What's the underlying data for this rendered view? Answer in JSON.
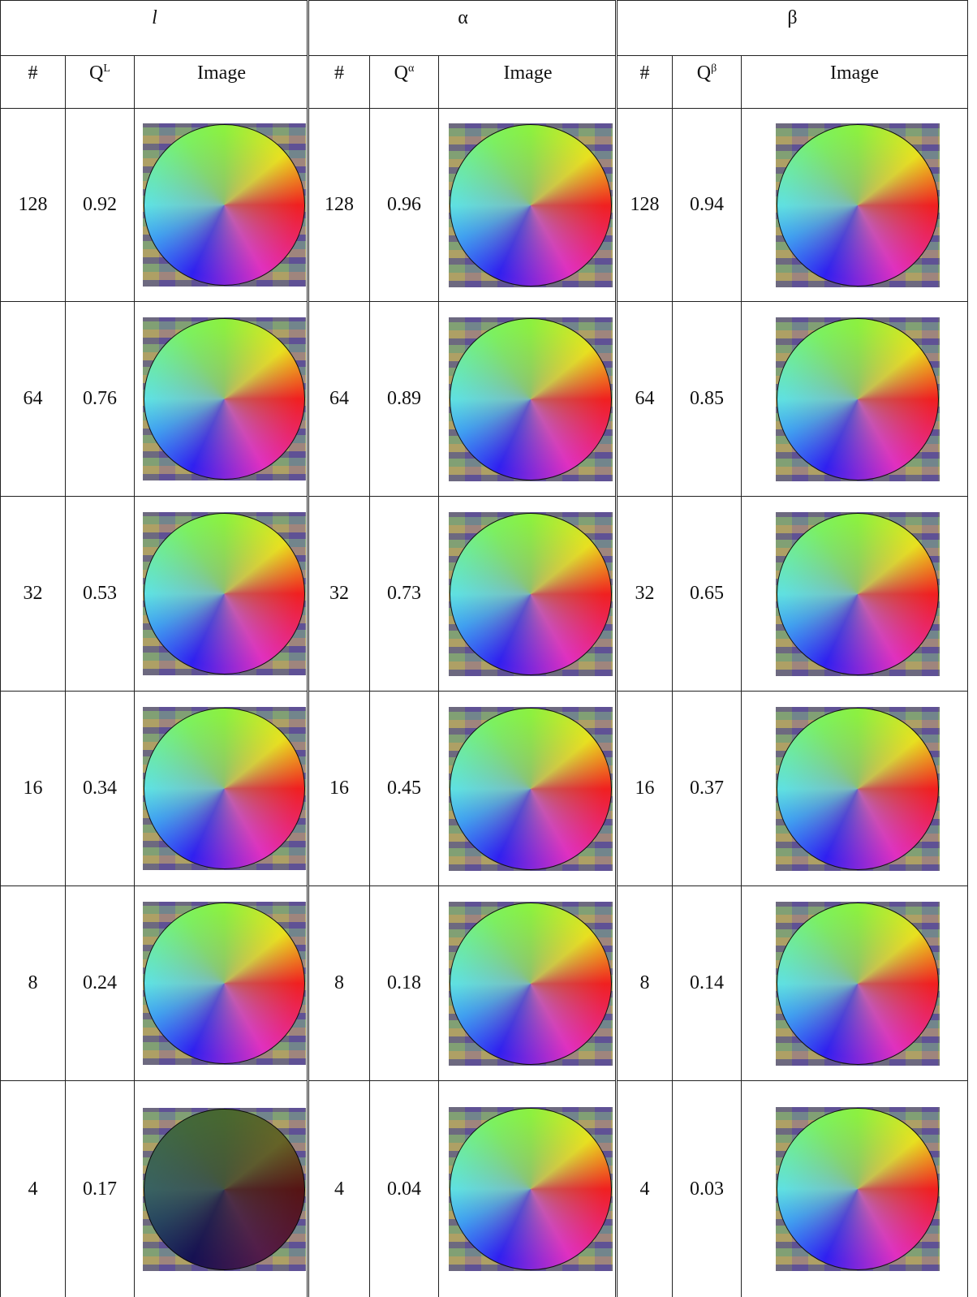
{
  "groups": [
    {
      "title": "l",
      "columns": {
        "number": "#",
        "quality": {
          "symbol": "Q",
          "subscript": "L"
        },
        "image": "Image"
      },
      "rows": [
        {
          "number": 128,
          "quality": 0.92
        },
        {
          "number": 64,
          "quality": 0.76
        },
        {
          "number": 32,
          "quality": 0.53
        },
        {
          "number": 16,
          "quality": 0.34
        },
        {
          "number": 8,
          "quality": 0.24
        },
        {
          "number": 4,
          "quality": 0.17
        }
      ]
    },
    {
      "title": "α",
      "columns": {
        "number": "#",
        "quality": {
          "symbol": "Q",
          "subscript": "α"
        },
        "image": "Image"
      },
      "rows": [
        {
          "number": 128,
          "quality": 0.96
        },
        {
          "number": 64,
          "quality": 0.89
        },
        {
          "number": 32,
          "quality": 0.73
        },
        {
          "number": 16,
          "quality": 0.45
        },
        {
          "number": 8,
          "quality": 0.18
        },
        {
          "number": 4,
          "quality": 0.04
        }
      ]
    },
    {
      "title": "β",
      "columns": {
        "number": "#",
        "quality": {
          "symbol": "Q",
          "subscript": "β"
        },
        "image": "Image"
      },
      "rows": [
        {
          "number": 128,
          "quality": 0.94
        },
        {
          "number": 64,
          "quality": 0.85
        },
        {
          "number": 32,
          "quality": 0.65
        },
        {
          "number": 16,
          "quality": 0.37
        },
        {
          "number": 8,
          "quality": 0.14
        },
        {
          "number": 4,
          "quality": 0.03
        }
      ]
    }
  ]
}
